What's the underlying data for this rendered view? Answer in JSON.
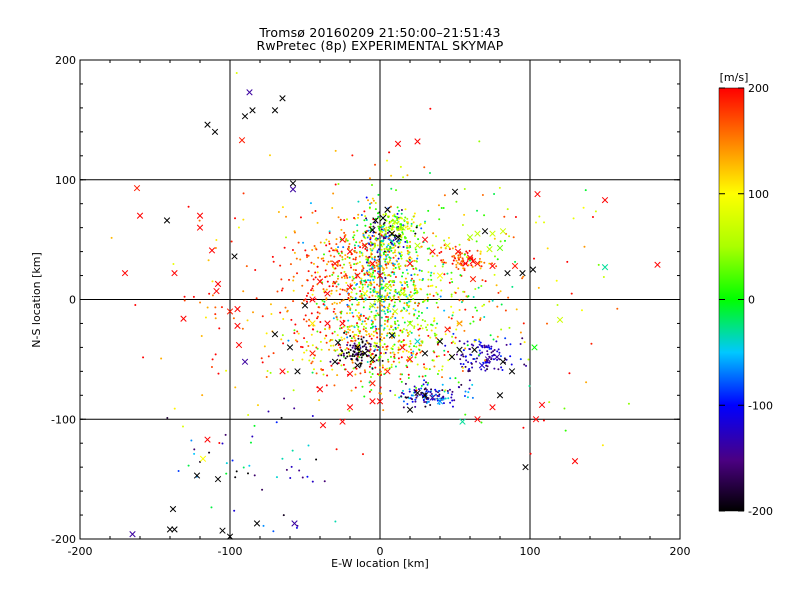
{
  "title_line1": "Tromsø 20160209 21:50:00–21:51:43",
  "title_line2": "RwPretec (8p) EXPERIMENTAL SKYMAP",
  "colorbar": {
    "unit_label": "[m/s]",
    "ticks": [
      "200",
      "100",
      "0",
      "-100",
      "-200"
    ],
    "range": [
      -200,
      200
    ]
  },
  "chart_data": {
    "type": "scatter",
    "title": "Tromsø 20160209 21:50:00–21:51:43",
    "subtitle": "RwPretec (8p) EXPERIMENTAL SKYMAP",
    "xlabel": "E-W location [km]",
    "ylabel": "N-S location [km]",
    "xlim": [
      -200,
      200
    ],
    "ylim": [
      -200,
      200
    ],
    "x_ticks": [
      "-200",
      "-100",
      "0",
      "100",
      "200"
    ],
    "y_ticks": [
      "200",
      "100",
      "0",
      "-100",
      "-200"
    ],
    "grid": true,
    "color_scale": "rainbow velocity [m/s], -200 black to 200 red",
    "cross_points": [
      {
        "x": -87,
        "y": 173,
        "v": -140
      },
      {
        "x": -90,
        "y": 153,
        "v": -200
      },
      {
        "x": -85,
        "y": 158,
        "v": -200
      },
      {
        "x": -65,
        "y": 168,
        "v": -200
      },
      {
        "x": -70,
        "y": 158,
        "v": -200
      },
      {
        "x": -115,
        "y": 146,
        "v": -200
      },
      {
        "x": -110,
        "y": 140,
        "v": -200
      },
      {
        "x": -92,
        "y": 133,
        "v": 190
      },
      {
        "x": 12,
        "y": 130,
        "v": 200
      },
      {
        "x": 25,
        "y": 132,
        "v": 200
      },
      {
        "x": -162,
        "y": 93,
        "v": 190
      },
      {
        "x": -160,
        "y": 70,
        "v": 200
      },
      {
        "x": -142,
        "y": 66,
        "v": -200
      },
      {
        "x": -120,
        "y": 70,
        "v": 200
      },
      {
        "x": -58,
        "y": 97,
        "v": -200
      },
      {
        "x": -58,
        "y": 92,
        "v": -140
      },
      {
        "x": 50,
        "y": 90,
        "v": -200
      },
      {
        "x": 105,
        "y": 88,
        "v": 200
      },
      {
        "x": 150,
        "y": 83,
        "v": 200
      },
      {
        "x": -112,
        "y": 41,
        "v": 200
      },
      {
        "x": -97,
        "y": 36,
        "v": -200
      },
      {
        "x": -137,
        "y": 22,
        "v": 200
      },
      {
        "x": -108,
        "y": 13,
        "v": 200
      },
      {
        "x": -109,
        "y": 7,
        "v": 200
      },
      {
        "x": -131,
        "y": -16,
        "v": 200
      },
      {
        "x": 150,
        "y": 27,
        "v": -30
      },
      {
        "x": 102,
        "y": 25,
        "v": -200
      },
      {
        "x": 95,
        "y": 22,
        "v": -200
      },
      {
        "x": 120,
        "y": -17,
        "v": 70
      },
      {
        "x": -95,
        "y": -8,
        "v": 200
      },
      {
        "x": -100,
        "y": -10,
        "v": 190
      },
      {
        "x": -95,
        "y": -22,
        "v": 200
      },
      {
        "x": -94,
        "y": -38,
        "v": 200
      },
      {
        "x": -90,
        "y": -52,
        "v": -140
      },
      {
        "x": -70,
        "y": -29,
        "v": -200
      },
      {
        "x": -60,
        "y": -40,
        "v": -200
      },
      {
        "x": -45,
        "y": -45,
        "v": 190
      },
      {
        "x": -40,
        "y": -75,
        "v": 200
      },
      {
        "x": -30,
        "y": -52,
        "v": -200
      },
      {
        "x": -28,
        "y": -36,
        "v": -200
      },
      {
        "x": -15,
        "y": -40,
        "v": -200
      },
      {
        "x": -20,
        "y": -62,
        "v": 200
      },
      {
        "x": -10,
        "y": -45,
        "v": -200
      },
      {
        "x": -5,
        "y": -50,
        "v": -200
      },
      {
        "x": -15,
        "y": -55,
        "v": -200
      },
      {
        "x": 0,
        "y": -85,
        "v": 200
      },
      {
        "x": -5,
        "y": -85,
        "v": 200
      },
      {
        "x": -20,
        "y": -90,
        "v": 200
      },
      {
        "x": -38,
        "y": -105,
        "v": 200
      },
      {
        "x": -25,
        "y": -102,
        "v": 200
      },
      {
        "x": 25,
        "y": -78,
        "v": -200
      },
      {
        "x": 30,
        "y": -80,
        "v": -200
      },
      {
        "x": 35,
        "y": -82,
        "v": -140
      },
      {
        "x": 40,
        "y": -85,
        "v": -60
      },
      {
        "x": 20,
        "y": -92,
        "v": -200
      },
      {
        "x": 55,
        "y": -102,
        "v": -30
      },
      {
        "x": 65,
        "y": -100,
        "v": 200
      },
      {
        "x": 75,
        "y": -90,
        "v": 200
      },
      {
        "x": 80,
        "y": -80,
        "v": -200
      },
      {
        "x": 68,
        "y": -55,
        "v": -120
      },
      {
        "x": 72,
        "y": -50,
        "v": -140
      },
      {
        "x": 78,
        "y": -48,
        "v": -140
      },
      {
        "x": 82,
        "y": -52,
        "v": -200
      },
      {
        "x": 88,
        "y": -60,
        "v": -200
      },
      {
        "x": 104,
        "y": -100,
        "v": 200
      },
      {
        "x": 108,
        "y": -88,
        "v": 200
      },
      {
        "x": 130,
        "y": -135,
        "v": 200
      },
      {
        "x": 97,
        "y": -140,
        "v": -200
      },
      {
        "x": 103,
        "y": -40,
        "v": 0
      },
      {
        "x": 63,
        "y": -42,
        "v": -200
      },
      {
        "x": 53,
        "y": -42,
        "v": -200
      },
      {
        "x": 48,
        "y": -48,
        "v": -200
      },
      {
        "x": 40,
        "y": -35,
        "v": -200
      },
      {
        "x": 45,
        "y": -25,
        "v": 190
      },
      {
        "x": 53,
        "y": -20,
        "v": 140
      },
      {
        "x": 60,
        "y": 35,
        "v": 200
      },
      {
        "x": 57,
        "y": 30,
        "v": 200
      },
      {
        "x": 62,
        "y": 32,
        "v": 200
      },
      {
        "x": 65,
        "y": 30,
        "v": 190
      },
      {
        "x": 70,
        "y": 57,
        "v": -200
      },
      {
        "x": 75,
        "y": 55,
        "v": 70
      },
      {
        "x": 82,
        "y": 57,
        "v": 70
      },
      {
        "x": 60,
        "y": 52,
        "v": 50
      },
      {
        "x": 65,
        "y": 55,
        "v": 60
      },
      {
        "x": 73,
        "y": 42,
        "v": 60
      },
      {
        "x": 80,
        "y": 43,
        "v": 30
      },
      {
        "x": 85,
        "y": 22,
        "v": -200
      },
      {
        "x": 90,
        "y": 28,
        "v": 190
      },
      {
        "x": 75,
        "y": 28,
        "v": 200
      },
      {
        "x": 62,
        "y": 17,
        "v": 190
      },
      {
        "x": 45,
        "y": 45,
        "v": 80
      },
      {
        "x": 52,
        "y": 40,
        "v": 200
      },
      {
        "x": 30,
        "y": 50,
        "v": 200
      },
      {
        "x": 35,
        "y": 40,
        "v": 200
      },
      {
        "x": 40,
        "y": 20,
        "v": 100
      },
      {
        "x": 20,
        "y": 30,
        "v": 200
      },
      {
        "x": 25,
        "y": 45,
        "v": 60
      },
      {
        "x": 15,
        "y": 60,
        "v": 60
      },
      {
        "x": 10,
        "y": 65,
        "v": 50
      },
      {
        "x": 5,
        "y": 75,
        "v": -200
      },
      {
        "x": 2,
        "y": 68,
        "v": -200
      },
      {
        "x": 8,
        "y": 55,
        "v": -200
      },
      {
        "x": 12,
        "y": 52,
        "v": -200
      },
      {
        "x": -5,
        "y": 58,
        "v": -200
      },
      {
        "x": -3,
        "y": 66,
        "v": -200
      },
      {
        "x": -10,
        "y": 45,
        "v": 200
      },
      {
        "x": -20,
        "y": 40,
        "v": 200
      },
      {
        "x": -25,
        "y": 50,
        "v": 200
      },
      {
        "x": -30,
        "y": 30,
        "v": 190
      },
      {
        "x": -40,
        "y": 15,
        "v": 200
      },
      {
        "x": -45,
        "y": 0,
        "v": 200
      },
      {
        "x": -50,
        "y": -5,
        "v": -200
      },
      {
        "x": -35,
        "y": 5,
        "v": 200
      },
      {
        "x": -20,
        "y": 10,
        "v": 200
      },
      {
        "x": -15,
        "y": 20,
        "v": 190
      },
      {
        "x": -5,
        "y": 30,
        "v": 200
      },
      {
        "x": 0,
        "y": 20,
        "v": 200
      },
      {
        "x": 5,
        "y": 10,
        "v": 60
      },
      {
        "x": 0,
        "y": 0,
        "v": 40
      },
      {
        "x": -5,
        "y": -5,
        "v": 60
      },
      {
        "x": 10,
        "y": -10,
        "v": 70
      },
      {
        "x": 15,
        "y": 5,
        "v": 80
      },
      {
        "x": -10,
        "y": 5,
        "v": 100
      },
      {
        "x": 20,
        "y": -20,
        "v": 50
      },
      {
        "x": 25,
        "y": -35,
        "v": -40
      },
      {
        "x": 30,
        "y": -45,
        "v": -200
      },
      {
        "x": 20,
        "y": -50,
        "v": 200
      },
      {
        "x": -25,
        "y": -20,
        "v": 200
      },
      {
        "x": -35,
        "y": -20,
        "v": 200
      },
      {
        "x": -45,
        "y": -20,
        "v": 110
      },
      {
        "x": -55,
        "y": -60,
        "v": -200
      },
      {
        "x": -65,
        "y": -60,
        "v": 200
      },
      {
        "x": 8,
        "y": -30,
        "v": -200
      },
      {
        "x": 15,
        "y": -40,
        "v": 200
      },
      {
        "x": 5,
        "y": -60,
        "v": 190
      },
      {
        "x": -5,
        "y": -70,
        "v": 190
      },
      {
        "x": -115,
        "y": -117,
        "v": 200
      },
      {
        "x": -118,
        "y": -133,
        "v": 100
      },
      {
        "x": -122,
        "y": -147,
        "v": -200
      },
      {
        "x": -108,
        "y": -150,
        "v": -200
      },
      {
        "x": -138,
        "y": -175,
        "v": -200
      },
      {
        "x": -140,
        "y": -192,
        "v": -200
      },
      {
        "x": -137,
        "y": -192,
        "v": -200
      },
      {
        "x": -165,
        "y": -196,
        "v": -140
      },
      {
        "x": -105,
        "y": -193,
        "v": -200
      },
      {
        "x": -100,
        "y": -198,
        "v": -200
      },
      {
        "x": -82,
        "y": -187,
        "v": -200
      },
      {
        "x": -57,
        "y": -187,
        "v": -140
      },
      {
        "x": -120,
        "y": 60,
        "v": 200
      },
      {
        "x": -170,
        "y": 22,
        "v": 200
      },
      {
        "x": 185,
        "y": 29,
        "v": 200
      }
    ],
    "dot_clusters": [
      {
        "cx": 0,
        "cy": 15,
        "sx": 18,
        "sy": 32,
        "n": 650,
        "vmean": 40,
        "vspread": 120
      },
      {
        "cx": 5,
        "cy": 50,
        "sx": 9,
        "sy": 10,
        "n": 140,
        "vmean": -60,
        "vspread": 150
      },
      {
        "cx": 10,
        "cy": 62,
        "sx": 8,
        "sy": 6,
        "n": 80,
        "vmean": 60,
        "vspread": 60
      },
      {
        "cx": -5,
        "cy": -40,
        "sx": 28,
        "sy": 15,
        "n": 300,
        "vmean": 120,
        "vspread": 110
      },
      {
        "cx": -15,
        "cy": -45,
        "sx": 6,
        "sy": 6,
        "n": 90,
        "vmean": -180,
        "vspread": 40
      },
      {
        "cx": 35,
        "cy": -80,
        "sx": 12,
        "sy": 5,
        "n": 130,
        "vmean": -110,
        "vspread": 80
      },
      {
        "cx": 70,
        "cy": -48,
        "sx": 10,
        "sy": 9,
        "n": 110,
        "vmean": -130,
        "vspread": 50
      },
      {
        "cx": 55,
        "cy": 33,
        "sx": 8,
        "sy": 5,
        "n": 70,
        "vmean": 170,
        "vspread": 50
      },
      {
        "cx": -25,
        "cy": 20,
        "sx": 18,
        "sy": 28,
        "n": 260,
        "vmean": 170,
        "vspread": 50
      },
      {
        "cx": 40,
        "cy": -10,
        "sx": 25,
        "sy": 30,
        "n": 170,
        "vmean": 80,
        "vspread": 120
      },
      {
        "cx": -70,
        "cy": 0,
        "sx": 45,
        "sy": 50,
        "n": 120,
        "vmean": 160,
        "vspread": 80
      },
      {
        "cx": -85,
        "cy": -150,
        "sx": 25,
        "sy": 35,
        "n": 60,
        "vmean": -120,
        "vspread": 120
      },
      {
        "cx": 120,
        "cy": -30,
        "sx": 35,
        "sy": 60,
        "n": 40,
        "vmean": 120,
        "vspread": 120
      },
      {
        "cx": 60,
        "cy": 60,
        "sx": 40,
        "sy": 40,
        "n": 60,
        "vmean": 100,
        "vspread": 120
      }
    ]
  }
}
